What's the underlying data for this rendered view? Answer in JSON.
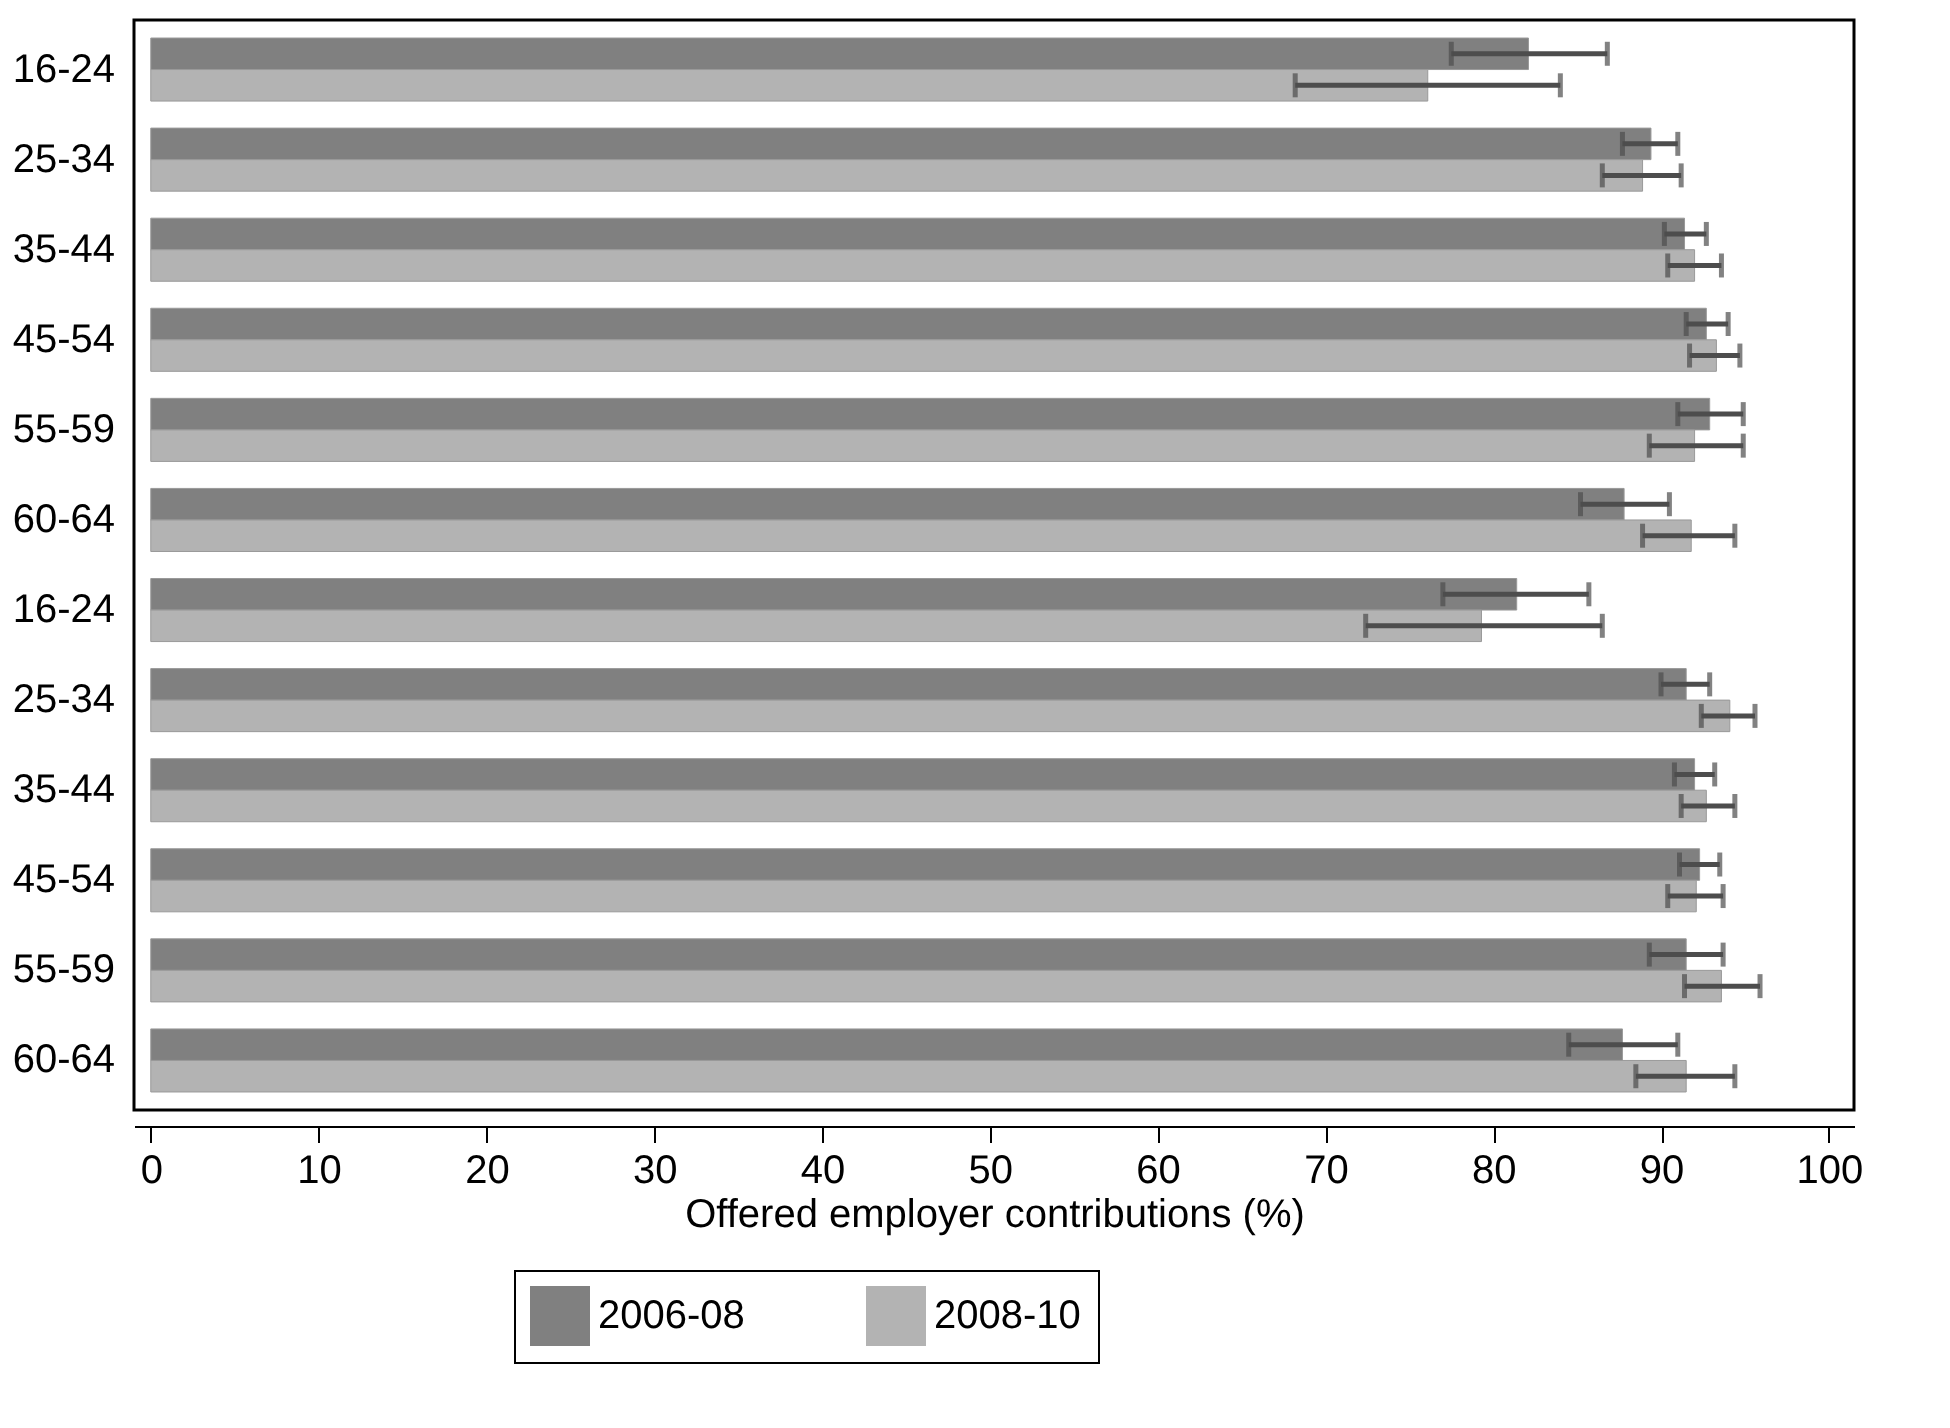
{
  "chart_data": {
    "type": "bar",
    "orientation": "horizontal",
    "xlabel": "Offered employer contributions (%)",
    "categories": [
      "16-24",
      "25-34",
      "35-44",
      "45-54",
      "55-59",
      "60-64",
      "16-24",
      "25-34",
      "35-44",
      "45-54",
      "55-59",
      "60-64"
    ],
    "series": [
      {
        "name": "2006-08",
        "color": "#808080",
        "values": [
          82.1,
          89.4,
          91.4,
          92.7,
          92.9,
          87.8,
          81.4,
          91.5,
          92.0,
          92.3,
          91.5,
          87.7
        ],
        "errors": [
          [
            77.5,
            86.8
          ],
          [
            87.7,
            91.0
          ],
          [
            90.2,
            92.7
          ],
          [
            91.5,
            94.0
          ],
          [
            91.0,
            94.9
          ],
          [
            85.2,
            90.5
          ],
          [
            77.0,
            85.7
          ],
          [
            90.0,
            92.9
          ],
          [
            90.8,
            93.2
          ],
          [
            91.1,
            93.5
          ],
          [
            89.3,
            93.7
          ],
          [
            84.5,
            91.0
          ]
        ]
      },
      {
        "name": "2008-10",
        "color": "#b3b3b3",
        "values": [
          76.1,
          88.9,
          92.0,
          93.3,
          92.0,
          91.8,
          79.3,
          94.1,
          92.7,
          92.1,
          93.6,
          91.5
        ],
        "errors": [
          [
            68.2,
            84.0
          ],
          [
            86.5,
            91.2
          ],
          [
            90.4,
            93.6
          ],
          [
            91.7,
            94.7
          ],
          [
            89.3,
            94.9
          ],
          [
            88.9,
            94.4
          ],
          [
            72.4,
            86.5
          ],
          [
            92.4,
            95.6
          ],
          [
            91.2,
            94.4
          ],
          [
            90.4,
            93.7
          ],
          [
            91.4,
            95.9
          ],
          [
            88.5,
            94.4
          ]
        ]
      }
    ],
    "xlim": [
      -1,
      101.5
    ],
    "xticks": [
      0,
      10,
      20,
      30,
      40,
      50,
      60,
      70,
      80,
      90,
      100
    ],
    "grid": false,
    "legend": "bottom"
  }
}
